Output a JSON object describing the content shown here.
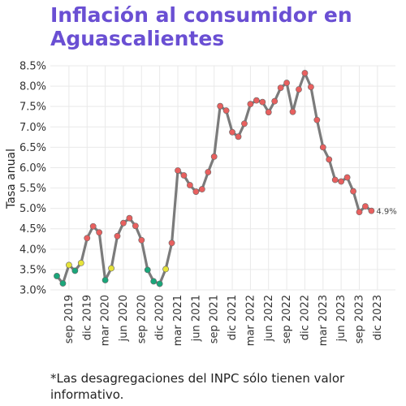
{
  "title": "Inflación al consumidor en Aguascalientes",
  "footnote": "*Las desagregaciones del INPC sólo tienen valor informativo.",
  "colors": {
    "title": "#6a4fd3",
    "line": "#7b7b7b",
    "low": "#1aa67a",
    "mid": "#e6e33a",
    "high": "#e8605f",
    "grid": "#e9e9e9"
  },
  "chart_data": {
    "type": "line",
    "title": "Inflación al consumidor en Aguascalientes",
    "xlabel": "",
    "ylabel": "Tasa anual",
    "ylim": [
      3.0,
      8.5
    ],
    "yticks": [
      "3.0%",
      "3.5%",
      "4.0%",
      "4.5%",
      "5.0%",
      "5.5%",
      "6.0%",
      "6.5%",
      "7.0%",
      "7.5%",
      "8.0%",
      "8.5%"
    ],
    "xticks": [
      "sep 2019",
      "dic 2019",
      "mar 2020",
      "jun 2020",
      "sep 2020",
      "dic 2020",
      "mar 2021",
      "jun 2021",
      "sep 2021",
      "dic 2021",
      "mar 2022",
      "jun 2022",
      "sep 2022",
      "dic 2022",
      "mar 2023",
      "jun 2023",
      "sep 2023",
      "dic 2023"
    ],
    "grid": true,
    "last_label": "4.9%",
    "x": [
      "jul 2019",
      "ago 2019",
      "sep 2019",
      "oct 2019",
      "nov 2019",
      "dic 2019",
      "ene 2020",
      "feb 2020",
      "mar 2020",
      "abr 2020",
      "may 2020",
      "jun 2020",
      "jul 2020",
      "ago 2020",
      "sep 2020",
      "oct 2020",
      "nov 2020",
      "dic 2020",
      "ene 2021",
      "feb 2021",
      "mar 2021",
      "abr 2021",
      "may 2021",
      "jun 2021",
      "jul 2021",
      "ago 2021",
      "sep 2021",
      "oct 2021",
      "nov 2021",
      "dic 2021",
      "ene 2022",
      "feb 2022",
      "mar 2022",
      "abr 2022",
      "may 2022",
      "jun 2022",
      "jul 2022",
      "ago 2022",
      "sep 2022",
      "oct 2022",
      "nov 2022",
      "dic 2022",
      "ene 2023",
      "feb 2023",
      "mar 2023",
      "abr 2023",
      "may 2023",
      "jun 2023",
      "jul 2023",
      "ago 2023",
      "sep 2023",
      "oct 2023",
      "nov 2023"
    ],
    "values": [
      3.34,
      3.16,
      3.61,
      3.47,
      3.66,
      4.27,
      4.56,
      4.41,
      3.24,
      3.53,
      4.32,
      4.64,
      4.76,
      4.57,
      4.22,
      3.49,
      3.21,
      3.15,
      3.51,
      4.15,
      5.93,
      5.81,
      5.57,
      5.41,
      5.47,
      5.89,
      6.27,
      7.51,
      7.4,
      6.87,
      6.76,
      7.08,
      7.56,
      7.65,
      7.61,
      7.36,
      7.63,
      7.96,
      8.08,
      7.37,
      7.92,
      8.32,
      7.98,
      7.17,
      6.5,
      6.2,
      5.7,
      5.66,
      5.76,
      5.42,
      4.91,
      5.05,
      4.94
    ]
  }
}
